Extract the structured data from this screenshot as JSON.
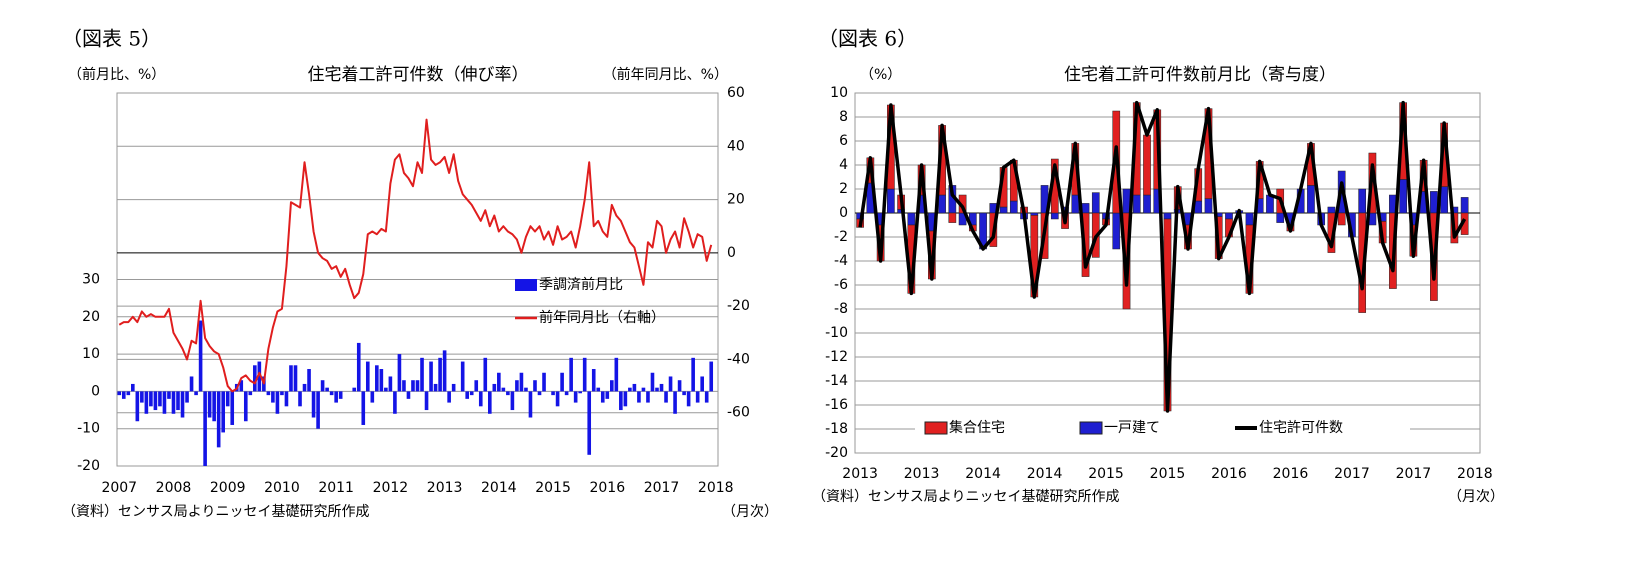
{
  "chart_data": [
    {
      "type": "bar_line",
      "figure_label": "（図表 5）",
      "title": "住宅着工許可件数（伸び率）",
      "ylabel": "（前月比、%）",
      "y2label": "（前年同月比、%）",
      "source": "（資料）センサス局よりニッセイ基礎研究所作成",
      "x_unit": "（月次）",
      "categories": [
        "2007",
        null,
        null,
        null,
        null,
        null,
        null,
        null,
        null,
        null,
        null,
        null,
        "2008",
        null,
        null,
        null,
        null,
        null,
        null,
        null,
        null,
        null,
        null,
        null,
        "2009",
        null,
        null,
        null,
        null,
        null,
        null,
        null,
        null,
        null,
        null,
        null,
        "2010",
        null,
        null,
        null,
        null,
        null,
        null,
        null,
        null,
        null,
        null,
        null,
        "2011",
        null,
        null,
        null,
        null,
        null,
        null,
        null,
        null,
        null,
        null,
        null,
        "2012",
        null,
        null,
        null,
        null,
        null,
        null,
        null,
        null,
        null,
        null,
        null,
        "2013",
        null,
        null,
        null,
        null,
        null,
        null,
        null,
        null,
        null,
        null,
        null,
        "2014",
        null,
        null,
        null,
        null,
        null,
        null,
        null,
        null,
        null,
        null,
        null,
        "2015",
        null,
        null,
        null,
        null,
        null,
        null,
        null,
        null,
        null,
        null,
        null,
        "2016",
        null,
        null,
        null,
        null,
        null,
        null,
        null,
        null,
        null,
        null,
        null,
        "2017",
        null,
        null,
        null,
        null,
        null,
        null,
        null,
        null,
        null,
        null,
        null,
        "2018"
      ],
      "series": [
        {
          "name": "季調済前月比",
          "type": "bar",
          "color": "#1414e6",
          "values": [
            -1,
            -2,
            -1,
            2,
            -8,
            -3,
            -6,
            -4,
            -5,
            -4,
            -6,
            -2,
            -6,
            -5,
            -7,
            -3,
            4,
            -1,
            19,
            -20,
            -7,
            -8,
            -15,
            -11,
            -4,
            -9,
            2,
            3,
            -8,
            -1,
            7,
            8,
            4,
            -1,
            -3,
            -6,
            -1,
            -4,
            7,
            7,
            -4,
            2,
            6,
            -7,
            -10,
            3,
            1,
            -1,
            -3,
            -2,
            0,
            0,
            1,
            13,
            -9,
            8,
            -3,
            7,
            6,
            1,
            4,
            -6,
            10,
            3,
            -2,
            3,
            3,
            9,
            -5,
            8,
            2,
            9,
            11,
            -3,
            2,
            0,
            8,
            -2,
            -1,
            3,
            -4,
            9,
            -6,
            2,
            5,
            1,
            -1,
            -5,
            3,
            5,
            1,
            -7,
            3,
            -1,
            5,
            0,
            -1,
            -4,
            5,
            -1,
            9,
            -3,
            -0.5,
            9,
            -17,
            6,
            1,
            -3,
            -2,
            3,
            9,
            -5,
            -4,
            1,
            2,
            -3,
            1,
            -3,
            5,
            1,
            2,
            -3,
            4,
            -6,
            3,
            -1,
            -4,
            9,
            -3,
            4,
            -3,
            8,
            null
          ]
        },
        {
          "name": "前年同月比（右軸）",
          "type": "line",
          "axis": "y2",
          "color": "#e01e1e",
          "values": [
            -27,
            -26,
            -26,
            -24,
            -26,
            -22,
            -24,
            -23,
            -24,
            -24,
            -24,
            -21,
            -30,
            -33,
            -36,
            -40,
            -33,
            -34,
            -18,
            -32,
            -35,
            -37,
            -38,
            -43,
            -50,
            -52,
            -51,
            -47,
            -46,
            -48,
            -49,
            -45,
            -49,
            -36,
            -28,
            -22,
            -21,
            -5,
            19,
            18,
            17,
            34,
            22,
            8,
            0,
            -2,
            -3,
            -6,
            -5,
            -9,
            -6,
            -12,
            -17,
            -15,
            -8,
            7,
            8,
            7,
            9,
            8,
            26,
            35,
            37,
            30,
            28,
            25,
            34,
            30,
            50,
            35,
            33,
            34,
            36,
            30,
            37,
            27,
            22,
            20,
            18,
            15,
            12,
            16,
            10,
            14,
            8,
            10,
            8,
            7,
            5,
            0,
            6,
            10,
            8,
            10,
            5,
            8,
            3,
            10,
            5,
            6,
            8,
            2,
            10,
            20,
            34,
            10,
            12,
            8,
            6,
            18,
            14,
            12,
            8,
            4,
            2,
            -5,
            -12,
            4,
            2,
            12,
            10,
            0,
            5,
            8,
            2,
            13,
            8,
            2,
            7,
            6,
            -3,
            3,
            null
          ]
        }
      ],
      "ylim": [
        -20,
        80
      ],
      "yticks": [
        -20,
        -10,
        0,
        10,
        20,
        30
      ],
      "y2lim": [
        -80,
        60
      ],
      "y2ticks": [
        -60,
        -40,
        -20,
        0,
        20,
        40,
        60
      ],
      "grid": true,
      "legend": "center right"
    },
    {
      "type": "stacked_bar_line",
      "figure_label": "（図表 6）",
      "title": "住宅着工許可件数前月比（寄与度）",
      "ylabel": "（%）",
      "source": "（資料）センサス局よりニッセイ基礎研究所作成",
      "x_unit": "（月次）",
      "categories": [
        "2013",
        null,
        null,
        null,
        null,
        null,
        "2013",
        null,
        null,
        null,
        null,
        null,
        "2014",
        null,
        null,
        null,
        null,
        null,
        "2014",
        null,
        null,
        null,
        null,
        null,
        "2015",
        null,
        null,
        null,
        null,
        null,
        "2015",
        null,
        null,
        null,
        null,
        null,
        "2016",
        null,
        null,
        null,
        null,
        null,
        "2016",
        null,
        null,
        null,
        null,
        null,
        "2017",
        null,
        null,
        null,
        null,
        null,
        "2017",
        null,
        null,
        null,
        null,
        null,
        "2018"
      ],
      "series": [
        {
          "name": "一戸建て",
          "type": "bar",
          "color": "#1f1fd0",
          "values": [
            -0.5,
            2.5,
            -1,
            2,
            0.3,
            -1,
            1.5,
            -1.5,
            1.5,
            2.3,
            -1,
            -1,
            -3,
            0.8,
            0.5,
            1,
            -0.5,
            -0.2,
            2.3,
            -0.5,
            0.5,
            1.5,
            0.8,
            1.7,
            -0.5,
            -3,
            2,
            1.5,
            1.5,
            2,
            -0.5,
            0.3,
            -1,
            1,
            1.2,
            -0.3,
            -0.5,
            0.2,
            -1,
            1.2,
            1.5,
            -0.8,
            -1,
            2,
            2.3,
            -1,
            0.5,
            3.5,
            -2,
            2,
            -1,
            -0.7,
            1.5,
            2.8,
            -1,
            1.8,
            1.8,
            2.2,
            0.5,
            1.3,
            null
          ]
        },
        {
          "name": "集合住宅",
          "type": "bar",
          "color": "#e02020",
          "values": [
            -0.7,
            2.1,
            -3,
            7,
            1.2,
            -5.7,
            2.5,
            -4,
            5.8,
            -0.8,
            1.5,
            -0.5,
            0,
            -2.8,
            3.3,
            3.4,
            0.5,
            -6.8,
            -3.8,
            4.5,
            -1.3,
            4.3,
            -5.3,
            -3.7,
            -0.5,
            8.5,
            -8,
            7.7,
            5,
            6.6,
            -16,
            1.9,
            -2,
            2.7,
            7.5,
            -3.5,
            -1.5,
            0,
            -5.7,
            3.1,
            0,
            2,
            -0.5,
            0,
            3.5,
            0,
            -3.3,
            -1,
            0,
            -8.3,
            5,
            -1.8,
            -6.3,
            6.4,
            -2.6,
            2.6,
            -7.3,
            5.3,
            -2.5,
            -1.8,
            null
          ]
        },
        {
          "name": "住宅許可件数",
          "type": "line",
          "color": "#000000",
          "values": [
            -1.2,
            4.6,
            -4,
            9,
            1.5,
            -6.7,
            4,
            -5.5,
            7.3,
            1.5,
            0.5,
            -1.5,
            -3,
            -2,
            3.8,
            4.4,
            0,
            -7,
            -1.5,
            4,
            -0.8,
            5.8,
            -4.5,
            -2,
            -1,
            5.5,
            -6,
            9.2,
            6.5,
            8.6,
            -16.5,
            2.2,
            -3,
            3.7,
            8.7,
            -3.8,
            -2,
            0.2,
            -6.7,
            4.3,
            1.5,
            1.2,
            -1.5,
            2,
            5.8,
            -1,
            -2.8,
            2.5,
            -2,
            -6.3,
            4,
            -2.5,
            -4.8,
            9.2,
            -3.6,
            4.4,
            -5.5,
            7.5,
            -2,
            -0.5,
            null
          ]
        }
      ],
      "legend_order": [
        1,
        0,
        2
      ],
      "ylim": [
        -20,
        10
      ],
      "yticks": [
        -20,
        -18,
        -16,
        -14,
        -12,
        -10,
        -8,
        -6,
        -4,
        -2,
        0,
        2,
        4,
        6,
        8,
        10
      ],
      "grid": true,
      "legend": "lower center"
    }
  ]
}
